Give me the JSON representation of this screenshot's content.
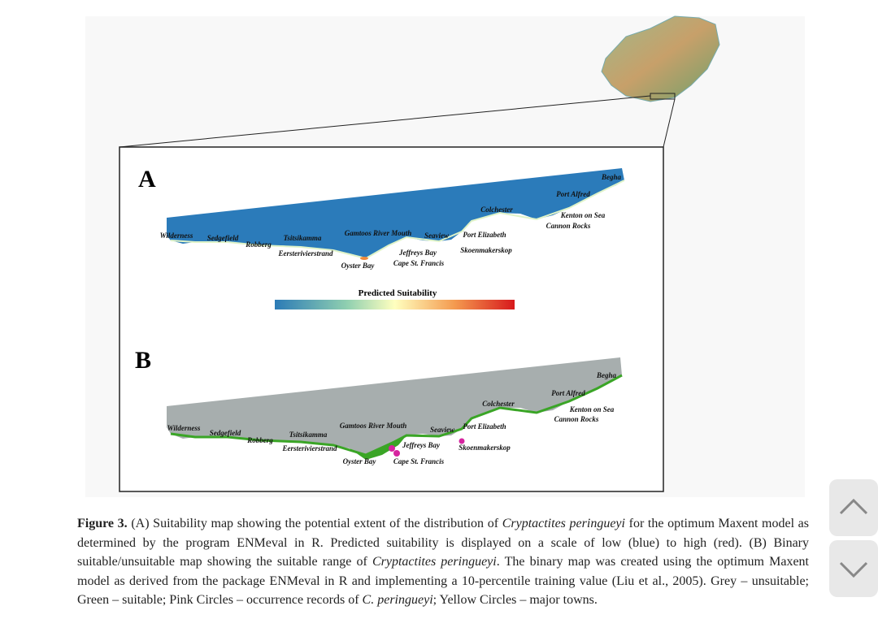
{
  "figure": {
    "panels": [
      {
        "label": "A",
        "places": [
          "Begha",
          "Port Alfred",
          "Colchester",
          "Kenton on Sea",
          "Cannon Rocks",
          "Wilderness",
          "Sedgefield",
          "Robberg",
          "Tsitsikamma",
          "Gamtoos River Mouth",
          "Seaview",
          "Port Elizabeth",
          "Eersterivierstrand",
          "Jeffreys Bay",
          "Skoenmakerskop",
          "Oyster Bay",
          "Cape St. Francis"
        ],
        "legend_title": "Predicted Suitability"
      },
      {
        "label": "B",
        "places": [
          "Begha",
          "Port Alfred",
          "Colchester",
          "Kenton on Sea",
          "Cannon Rocks",
          "Wilderness",
          "Sedgefield",
          "Robberg",
          "Tsitsikamma",
          "Gamtoos River Mouth",
          "Seaview",
          "Port Elizabeth",
          "Eersterivierstrand",
          "Jeffreys Bay",
          "Skoenmakerskop",
          "Oyster Bay",
          "Cape St. Francis"
        ]
      }
    ],
    "caption": [
      "Figure 3.",
      " (A) Suitability map showing the potential extent of the distribution of ",
      "Cryptactites peringueyi",
      " for the optimum Maxent model as determined by the program ENMeval in R. Predicted suitability is displayed on a scale of low (blue) to high (red). (B) Binary suitable/unsuitable map showing the suitable range of ",
      "Cryptactites peringueyi",
      ". The binary map was created using the optimum Maxent model as derived from the package ENMeval in R and implementing a 10-percentile training value (Liu et al., 2005). Grey – unsuitable; Green – suitable; Pink Circles – occurrence records of ",
      "C. peringueyi",
      "; Yellow Circles – major towns."
    ]
  }
}
